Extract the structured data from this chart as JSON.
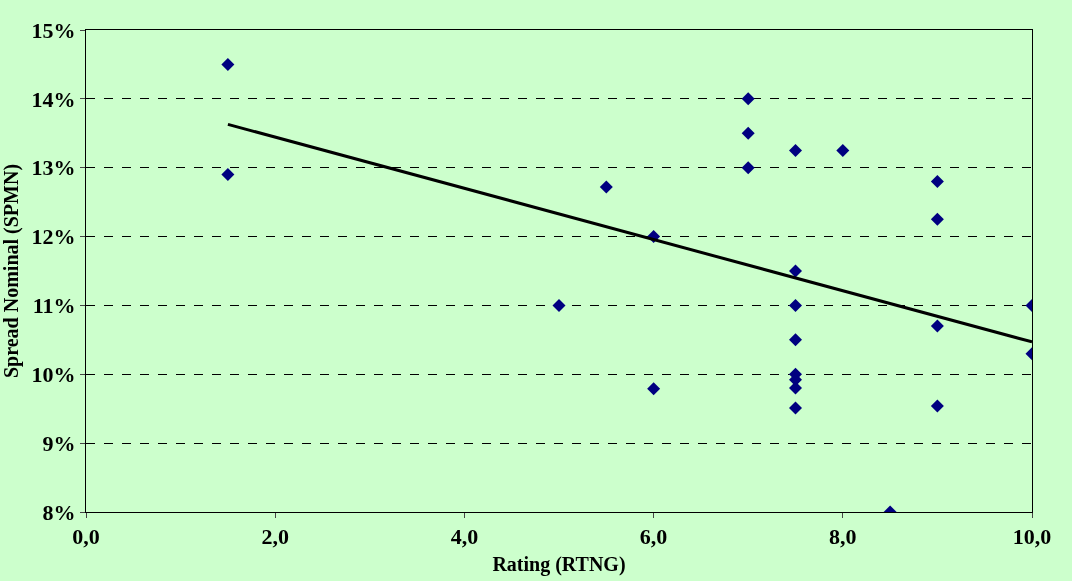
{
  "chart_data": {
    "type": "scatter",
    "xlabel": "Rating (RTNG)",
    "ylabel": "Spread Nominal (SPMN)",
    "xlim": [
      0,
      10
    ],
    "ylim": [
      8,
      15
    ],
    "xticks": [
      {
        "value": 0,
        "label": "0,0"
      },
      {
        "value": 2,
        "label": "2,0"
      },
      {
        "value": 4,
        "label": "4,0"
      },
      {
        "value": 6,
        "label": "6,0"
      },
      {
        "value": 8,
        "label": "8,0"
      },
      {
        "value": 10,
        "label": "10,0"
      }
    ],
    "yticks": [
      {
        "value": 8,
        "label": "8%"
      },
      {
        "value": 9,
        "label": "9%"
      },
      {
        "value": 10,
        "label": "10%"
      },
      {
        "value": 11,
        "label": "11%"
      },
      {
        "value": 12,
        "label": "12%"
      },
      {
        "value": 13,
        "label": "13%"
      },
      {
        "value": 14,
        "label": "14%"
      },
      {
        "value": 15,
        "label": "15%"
      }
    ],
    "grid": "y",
    "marker": "diamond",
    "series": [
      {
        "color": "#000080",
        "x": [
          1.5,
          1.5,
          5.0,
          5.5,
          6.0,
          6.0,
          7.0,
          7.0,
          7.0,
          7.5,
          8.0,
          7.5,
          7.5,
          7.5,
          7.5,
          7.5,
          7.5,
          7.5,
          8.5,
          9.0,
          9.0,
          9.0,
          9.0,
          10.0,
          10.0
        ],
        "values": [
          14.5,
          12.9,
          11.0,
          12.72,
          12.0,
          9.79,
          14.0,
          13.5,
          13.0,
          13.25,
          13.25,
          11.5,
          11.0,
          10.5,
          10.0,
          9.92,
          9.8,
          9.51,
          8.0,
          12.8,
          12.25,
          10.7,
          9.54,
          11.0,
          10.3
        ]
      },
      {
        "type": "line",
        "color": "#000000",
        "marker": "none",
        "line_style": "solid",
        "x": [
          1.5,
          10.0
        ],
        "values": [
          13.63,
          10.47
        ]
      }
    ]
  }
}
